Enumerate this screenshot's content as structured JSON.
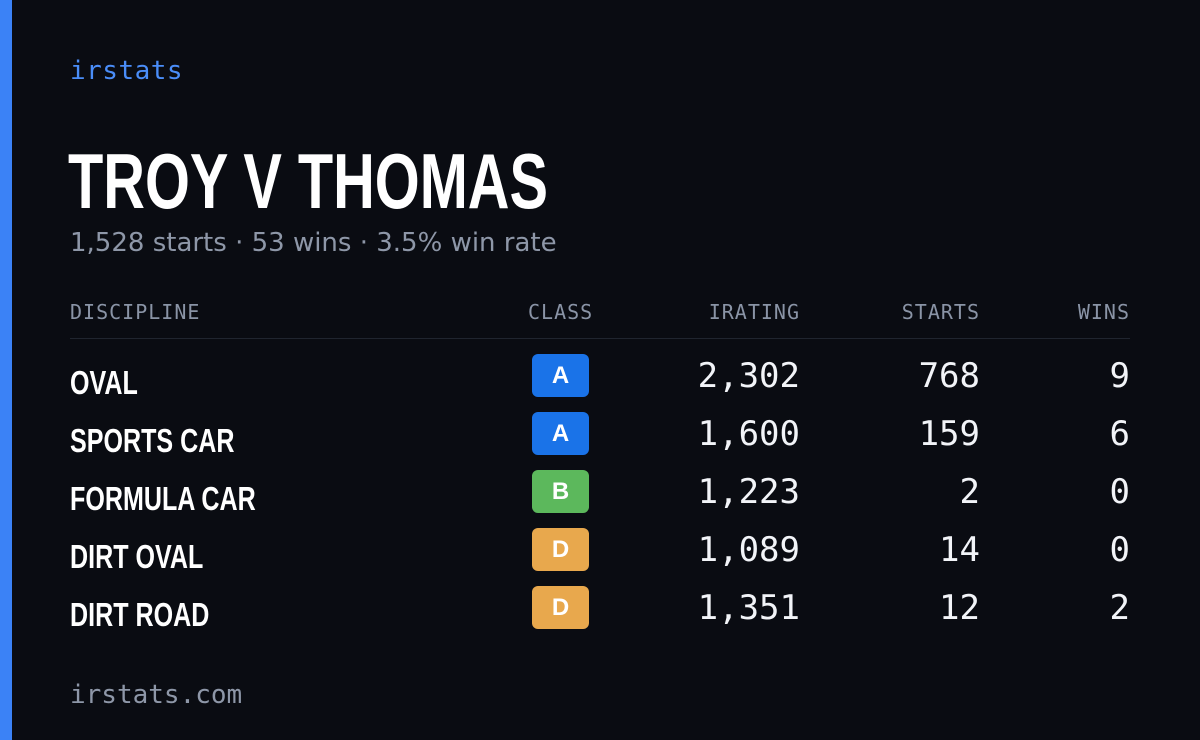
{
  "brand": "irstats",
  "driver": {
    "name": "TROY V THOMAS",
    "summary": "1,528 starts · 53 wins · 3.5% win rate"
  },
  "table": {
    "headers": {
      "discipline": "DISCIPLINE",
      "class": "CLASS",
      "irating": "IRATING",
      "starts": "STARTS",
      "wins": "WINS"
    },
    "rows": [
      {
        "discipline": "OVAL",
        "class": "A",
        "class_color": "#1a73e8",
        "irating": "2,302",
        "starts": "768",
        "wins": "9"
      },
      {
        "discipline": "SPORTS CAR",
        "class": "A",
        "class_color": "#1a73e8",
        "irating": "1,600",
        "starts": "159",
        "wins": "6"
      },
      {
        "discipline": "FORMULA CAR",
        "class": "B",
        "class_color": "#5cb85c",
        "irating": "1,223",
        "starts": "2",
        "wins": "0"
      },
      {
        "discipline": "DIRT OVAL",
        "class": "D",
        "class_color": "#e8a84d",
        "irating": "1,089",
        "starts": "14",
        "wins": "0"
      },
      {
        "discipline": "DIRT ROAD",
        "class": "D",
        "class_color": "#e8a84d",
        "irating": "1,351",
        "starts": "12",
        "wins": "2"
      }
    ]
  },
  "footer": "irstats.com",
  "colors": {
    "accent": "#3b82f6",
    "background": "#0a0c12"
  }
}
